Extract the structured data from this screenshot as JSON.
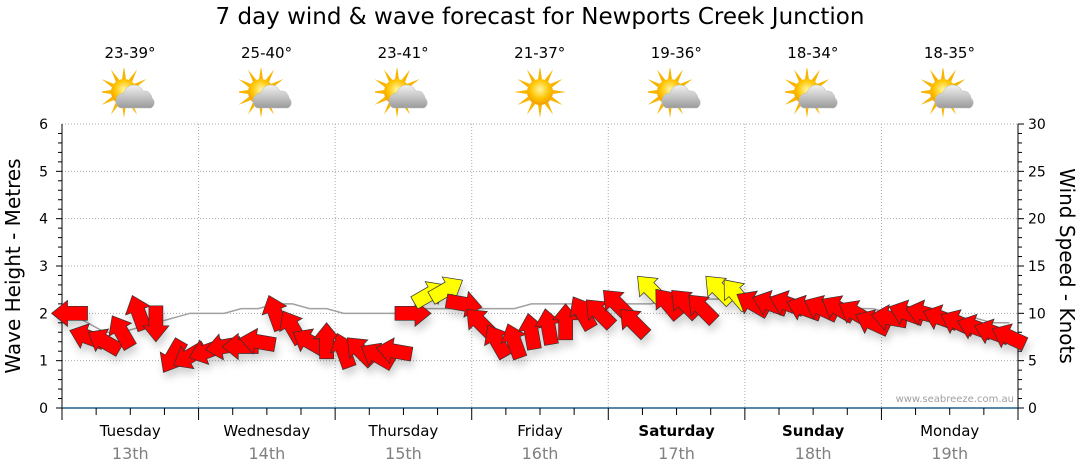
{
  "title": "7 day wind & wave forecast for Newports Creek Junction",
  "forecast": [
    {
      "temp": "23-39°",
      "icon": "partly-cloudy-icon"
    },
    {
      "temp": "25-40°",
      "icon": "partly-cloudy-icon"
    },
    {
      "temp": "23-41°",
      "icon": "partly-cloudy-icon"
    },
    {
      "temp": "21-37°",
      "icon": "sunny-icon"
    },
    {
      "temp": "19-36°",
      "icon": "partly-cloudy-icon"
    },
    {
      "temp": "18-34°",
      "icon": "partly-cloudy-icon"
    },
    {
      "temp": "18-35°",
      "icon": "partly-cloudy-icon"
    }
  ],
  "watermark": "www.seabreeze.com.au",
  "colors": {
    "arrow_normal": "#ff0000",
    "arrow_highlight": "#ffff00",
    "axis": "#1f5f8b",
    "wave_line": "#a0a0a0"
  },
  "chart_data": {
    "type": "line",
    "title": "7 day wind & wave forecast for Newports Creek Junction",
    "ylabel": "Wave Height - Metres",
    "y2label": "Wind Speed - Knots",
    "ylim": [
      0,
      6
    ],
    "y2lim": [
      0,
      30
    ],
    "yticks": [
      "0",
      "1",
      "2",
      "3",
      "4",
      "5",
      "6"
    ],
    "y2ticks": [
      "0",
      "5",
      "10",
      "15",
      "20",
      "25",
      "30"
    ],
    "grid": true,
    "days": [
      {
        "name": "Tuesday",
        "date": "13th",
        "bold": false
      },
      {
        "name": "Wednesday",
        "date": "14th",
        "bold": false
      },
      {
        "name": "Thursday",
        "date": "15th",
        "bold": false
      },
      {
        "name": "Friday",
        "date": "16th",
        "bold": false
      },
      {
        "name": "Saturday",
        "date": "17th",
        "bold": true
      },
      {
        "name": "Sunday",
        "date": "18th",
        "bold": true
      },
      {
        "name": "Monday",
        "date": "19th",
        "bold": false
      }
    ],
    "interval_hours": 3,
    "wind_speed_knots": [
      10,
      7.5,
      7,
      8,
      10,
      9,
      5.5,
      5.5,
      6,
      6.5,
      6.5,
      7,
      10,
      8.5,
      7,
      7,
      6,
      6,
      5.5,
      6,
      10,
      12,
      12.5,
      11,
      9,
      7,
      7,
      8,
      8.5,
      9,
      10,
      10,
      11,
      9,
      12.5,
      11,
      11,
      10.5,
      12.5,
      12,
      11,
      11,
      11,
      10.5,
      10.5,
      10.5,
      10,
      9,
      9.5,
      10,
      10,
      9.5,
      9,
      8.5,
      8,
      7.5
    ],
    "wind_direction_from_deg": [
      90,
      110,
      120,
      150,
      160,
      0,
      30,
      60,
      70,
      80,
      90,
      100,
      160,
      150,
      120,
      180,
      160,
      135,
      120,
      100,
      270,
      240,
      240,
      280,
      135,
      150,
      160,
      170,
      170,
      180,
      150,
      135,
      135,
      135,
      135,
      140,
      135,
      135,
      135,
      140,
      120,
      110,
      110,
      110,
      115,
      120,
      120,
      115,
      100,
      110,
      105,
      110,
      115,
      110,
      110,
      115
    ],
    "wind_highlight": [
      0,
      0,
      0,
      0,
      0,
      0,
      0,
      0,
      0,
      0,
      0,
      0,
      0,
      0,
      0,
      0,
      0,
      0,
      0,
      0,
      0,
      1,
      1,
      0,
      0,
      0,
      0,
      0,
      0,
      0,
      0,
      0,
      0,
      0,
      1,
      0,
      0,
      0,
      1,
      1,
      0,
      0,
      0,
      0,
      0,
      0,
      0,
      0,
      0,
      0,
      0,
      0,
      0,
      0,
      0,
      0
    ],
    "wave_height_m": [
      2.0,
      1.8,
      1.6,
      1.6,
      1.7,
      1.8,
      1.9,
      2.0,
      2.0,
      2.0,
      2.1,
      2.1,
      2.2,
      2.2,
      2.1,
      2.1,
      2.0,
      2.0,
      2.0,
      2.0,
      2.1,
      2.1,
      2.1,
      2.1,
      2.1,
      2.1,
      2.1,
      2.2,
      2.2,
      2.2,
      2.2,
      2.2,
      2.2,
      2.2,
      2.2,
      2.3,
      2.3,
      2.3,
      2.3,
      2.3,
      2.2,
      2.2,
      2.2,
      2.2,
      2.1,
      2.1,
      2.1,
      2.1,
      2.0,
      2.0,
      2.0,
      2.0,
      1.9,
      1.9,
      1.8,
      1.8
    ]
  }
}
